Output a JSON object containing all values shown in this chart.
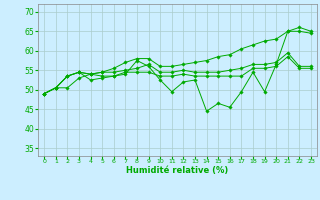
{
  "xlabel": "Humidité relative (%)",
  "background_color": "#cceeff",
  "grid_color": "#aacccc",
  "line_color": "#00aa00",
  "xlim": [
    -0.5,
    23.5
  ],
  "ylim": [
    33,
    72
  ],
  "yticks": [
    35,
    40,
    45,
    50,
    55,
    60,
    65,
    70
  ],
  "xticks": [
    0,
    1,
    2,
    3,
    4,
    5,
    6,
    7,
    8,
    9,
    10,
    11,
    12,
    13,
    14,
    15,
    16,
    17,
    18,
    19,
    20,
    21,
    22,
    23
  ],
  "series": [
    [
      49.0,
      50.5,
      50.5,
      53.0,
      54.0,
      53.5,
      53.5,
      54.0,
      57.5,
      56.0,
      52.5,
      49.5,
      52.0,
      52.5,
      44.5,
      46.5,
      45.5,
      49.5,
      54.5,
      49.5,
      56.5,
      65.0,
      65.0,
      64.5
    ],
    [
      49.0,
      50.5,
      53.5,
      54.5,
      52.5,
      53.0,
      53.5,
      54.5,
      54.5,
      54.5,
      53.5,
      53.5,
      54.0,
      53.5,
      53.5,
      53.5,
      53.5,
      53.5,
      55.5,
      55.5,
      56.0,
      58.5,
      55.5,
      55.5
    ],
    [
      49.0,
      50.5,
      53.5,
      54.5,
      54.0,
      54.5,
      54.5,
      55.0,
      55.5,
      56.5,
      54.5,
      54.5,
      55.0,
      54.5,
      54.5,
      54.5,
      55.0,
      55.5,
      56.5,
      56.5,
      57.0,
      59.5,
      56.0,
      56.0
    ],
    [
      49.0,
      50.5,
      53.5,
      54.5,
      54.0,
      54.5,
      55.5,
      57.0,
      58.0,
      58.0,
      56.0,
      56.0,
      56.5,
      57.0,
      57.5,
      58.5,
      59.0,
      60.5,
      61.5,
      62.5,
      63.0,
      65.0,
      66.0,
      65.0
    ]
  ]
}
